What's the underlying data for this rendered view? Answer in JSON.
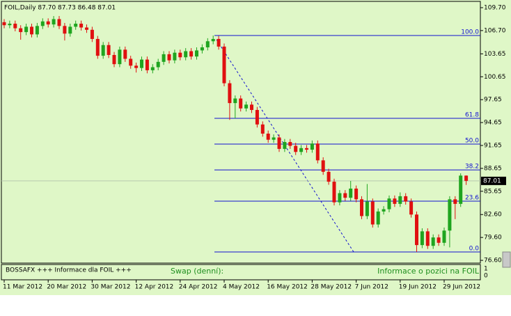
{
  "chart_data": {
    "type": "candlestick",
    "title": "FOIL,Daily  87.70 87.73 86.48 87.01",
    "up_color": "#1fa51f",
    "down_color": "#e01010",
    "fib_color": "#1010d0",
    "categories": [
      "11 Mar 2012",
      null,
      null,
      null,
      null,
      null,
      null,
      null,
      "20 Mar 2012",
      null,
      null,
      null,
      null,
      null,
      null,
      null,
      "30 Mar 2012",
      null,
      null,
      null,
      null,
      null,
      null,
      null,
      "12 Apr 2012",
      null,
      null,
      null,
      null,
      null,
      null,
      null,
      "24 Apr 2012",
      null,
      null,
      null,
      null,
      null,
      null,
      null,
      "4 May 2012",
      null,
      null,
      null,
      null,
      null,
      null,
      null,
      "16 May 2012",
      null,
      null,
      null,
      null,
      null,
      null,
      null,
      "28 May 2012",
      null,
      null,
      null,
      null,
      null,
      null,
      null,
      "7 Jun 2012",
      null,
      null,
      null,
      null,
      null,
      null,
      null,
      "19 Jun 2012",
      null,
      null,
      null,
      null,
      null,
      null,
      null,
      "29 Jun 2012",
      null,
      null,
      null,
      null
    ],
    "open": [
      107.8,
      107.4,
      107.6,
      107.0,
      106.5,
      107.2,
      106.2,
      107.3,
      107.9,
      107.5,
      108.2,
      107.3,
      106.3,
      107.2,
      107.6,
      107.1,
      106.8,
      105.6,
      103.4,
      104.8,
      103.5,
      102.3,
      104.2,
      103.0,
      102.1,
      101.8,
      102.9,
      101.5,
      101.9,
      102.6,
      103.6,
      102.8,
      103.8,
      103.2,
      104.0,
      103.3,
      104.1,
      104.5,
      105.3,
      105.6,
      104.6,
      99.8,
      97.2,
      97.8,
      96.5,
      97.0,
      96.3,
      94.4,
      93.2,
      92.4,
      92.7,
      91.2,
      92.1,
      91.6,
      90.8,
      91.3,
      91.1,
      91.9,
      89.7,
      88.2,
      86.9,
      84.2,
      85.4,
      84.8,
      86.0,
      84.6,
      82.4,
      84.3,
      81.3,
      83.0,
      83.3,
      84.7,
      84.0,
      85.0,
      84.3,
      82.6,
      78.6,
      80.4,
      78.5,
      79.6,
      78.9,
      80.5,
      84.6,
      84.0,
      87.7
    ],
    "high": [
      108.2,
      108.0,
      108.0,
      107.4,
      107.6,
      107.6,
      107.7,
      108.3,
      108.3,
      108.6,
      108.6,
      107.7,
      107.6,
      108.0,
      108.0,
      107.5,
      107.2,
      106.0,
      105.2,
      105.2,
      103.9,
      104.6,
      104.6,
      103.4,
      102.5,
      103.3,
      103.3,
      102.3,
      103.0,
      104.0,
      104.0,
      104.2,
      104.2,
      104.4,
      104.4,
      104.5,
      104.9,
      105.7,
      106.05,
      106.0,
      105.0,
      100.2,
      98.2,
      98.2,
      97.4,
      97.4,
      96.7,
      94.8,
      93.6,
      93.1,
      93.1,
      92.5,
      92.5,
      92.0,
      91.7,
      91.7,
      92.3,
      92.3,
      90.1,
      88.6,
      87.3,
      85.8,
      85.8,
      87.0,
      86.4,
      85.0,
      86.6,
      84.7,
      83.4,
      83.7,
      85.1,
      85.1,
      85.5,
      85.4,
      84.7,
      83.0,
      80.8,
      80.8,
      80.0,
      80.0,
      80.9,
      85.0,
      85.0,
      88.0,
      87.73
    ],
    "low": [
      107.0,
      107.0,
      106.6,
      105.5,
      106.1,
      105.8,
      105.8,
      106.9,
      107.1,
      107.1,
      106.9,
      105.4,
      105.9,
      106.8,
      106.7,
      106.4,
      105.2,
      103.0,
      103.0,
      103.1,
      101.9,
      101.9,
      102.6,
      101.7,
      101.2,
      101.4,
      101.1,
      101.1,
      101.5,
      102.2,
      102.4,
      102.4,
      102.8,
      102.8,
      102.9,
      102.9,
      103.7,
      104.1,
      104.9,
      104.2,
      99.4,
      95.0,
      95.2,
      96.1,
      96.1,
      95.9,
      94.0,
      92.8,
      92.0,
      92.0,
      90.8,
      90.8,
      91.2,
      90.4,
      90.4,
      90.7,
      90.7,
      89.3,
      87.8,
      86.5,
      83.8,
      83.8,
      84.4,
      84.4,
      84.2,
      82.0,
      82.0,
      80.9,
      80.9,
      82.6,
      82.9,
      83.6,
      83.6,
      83.9,
      82.2,
      77.7,
      78.2,
      78.1,
      78.1,
      78.5,
      78.5,
      78.3,
      82.0,
      83.6,
      86.48
    ],
    "close": [
      107.4,
      107.6,
      107.0,
      106.5,
      107.2,
      106.2,
      107.3,
      107.9,
      107.5,
      108.2,
      107.3,
      106.3,
      107.2,
      107.6,
      107.1,
      106.8,
      105.6,
      103.4,
      104.8,
      103.5,
      102.3,
      104.2,
      103.0,
      102.1,
      101.8,
      102.9,
      101.5,
      101.9,
      102.6,
      103.6,
      102.8,
      103.8,
      103.2,
      104.0,
      103.3,
      104.1,
      104.5,
      105.3,
      105.6,
      104.6,
      99.8,
      97.2,
      97.8,
      96.5,
      97.0,
      96.3,
      94.4,
      93.2,
      92.4,
      92.7,
      91.2,
      92.1,
      91.6,
      90.8,
      91.3,
      91.1,
      91.9,
      89.7,
      88.2,
      86.9,
      84.2,
      85.4,
      84.8,
      86.0,
      84.6,
      82.4,
      84.3,
      81.3,
      83.0,
      83.3,
      84.7,
      84.0,
      85.0,
      84.3,
      82.6,
      78.6,
      80.4,
      78.5,
      79.6,
      78.9,
      80.5,
      84.6,
      84.0,
      87.7,
      87.01
    ],
    "ylim": [
      76.24,
      110.52
    ],
    "yticks": [
      {
        "value": 109.7,
        "label": "109.70"
      },
      {
        "value": 106.7,
        "label": "106.70"
      },
      {
        "value": 103.65,
        "label": "103.65"
      },
      {
        "value": 100.65,
        "label": "100.65"
      },
      {
        "value": 97.65,
        "label": "97.65"
      },
      {
        "value": 94.65,
        "label": "94.65"
      },
      {
        "value": 91.65,
        "label": "91.65"
      },
      {
        "value": 88.65,
        "label": "88.65"
      },
      {
        "value": 85.65,
        "label": "85.65"
      },
      {
        "value": 82.6,
        "label": "82.60"
      },
      {
        "value": 79.6,
        "label": "79.60"
      },
      {
        "value": 76.6,
        "label": "76.60"
      }
    ],
    "last_price": {
      "value": 87.01,
      "label": "87.01"
    },
    "fib_levels": [
      {
        "value": 106.05,
        "label": "100.0"
      },
      {
        "value": 95.2,
        "label": "61.8"
      },
      {
        "value": 91.83,
        "label": "50.0"
      },
      {
        "value": 88.45,
        "label": "38.2"
      },
      {
        "value": 84.35,
        "label": "23.6"
      },
      {
        "value": 77.7,
        "label": "0.0"
      }
    ],
    "sub_panel": {
      "title": "BOSSAFX +++ Informace dla FOIL +++",
      "swap_label": "Swap (denní):",
      "position_label": "Informace o pozici na FOIL",
      "ylim": [
        0,
        1
      ],
      "yticks": [
        1,
        0
      ]
    }
  }
}
